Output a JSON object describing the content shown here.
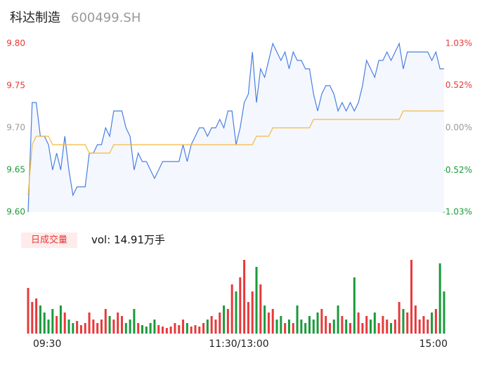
{
  "header": {
    "name": "科达制造",
    "code": "600499.SH"
  },
  "chart_data": {
    "type": "line",
    "ylim": [
      9.6,
      9.8
    ],
    "yticks": [
      {
        "value": 9.8,
        "label": "9.80"
      },
      {
        "value": 9.75,
        "label": "9.75"
      },
      {
        "value": 9.7,
        "label": "9.70"
      },
      {
        "value": 9.65,
        "label": "9.65"
      },
      {
        "value": 9.6,
        "label": "9.60"
      }
    ],
    "y2lim": [
      -1.03,
      1.03
    ],
    "y2ticks": [
      {
        "value": 1.03,
        "label": "1.03%"
      },
      {
        "value": 0.52,
        "label": "0.52%"
      },
      {
        "value": 0,
        "label": "0.00%"
      },
      {
        "value": -0.52,
        "label": "-0.52%"
      },
      {
        "value": -1.03,
        "label": "-1.03%"
      }
    ],
    "time_labels": [
      "09:30",
      "11:30/13:00",
      "15:00"
    ],
    "up_color": "#e8393a",
    "down_color": "#1a9a3a",
    "flat_color": "#999999",
    "series": [
      {
        "name": "price",
        "color": "#4a7fe0",
        "values": [
          9.6,
          9.73,
          9.73,
          9.69,
          9.69,
          9.68,
          9.65,
          9.67,
          9.65,
          9.69,
          9.65,
          9.62,
          9.63,
          9.63,
          9.63,
          9.67,
          9.67,
          9.68,
          9.68,
          9.7,
          9.69,
          9.72,
          9.72,
          9.72,
          9.7,
          9.69,
          9.65,
          9.67,
          9.66,
          9.66,
          9.65,
          9.64,
          9.65,
          9.66,
          9.66,
          9.66,
          9.66,
          9.66,
          9.68,
          9.66,
          9.68,
          9.69,
          9.7,
          9.7,
          9.69,
          9.7,
          9.7,
          9.71,
          9.7,
          9.72,
          9.72,
          9.68,
          9.7,
          9.73,
          9.74,
          9.79,
          9.73,
          9.77,
          9.76,
          9.78,
          9.8,
          9.79,
          9.78,
          9.79,
          9.77,
          9.79,
          9.78,
          9.78,
          9.77,
          9.77,
          9.74,
          9.72,
          9.74,
          9.75,
          9.75,
          9.74,
          9.72,
          9.73,
          9.72,
          9.73,
          9.72,
          9.73,
          9.75,
          9.78,
          9.77,
          9.76,
          9.78,
          9.78,
          9.79,
          9.78,
          9.79,
          9.8,
          9.77,
          9.79,
          9.79,
          9.79,
          9.79,
          9.79,
          9.79,
          9.78,
          9.79,
          9.77,
          9.77
        ]
      },
      {
        "name": "average",
        "color": "#f5b942",
        "values": [
          9.62,
          9.68,
          9.69,
          9.69,
          9.69,
          9.69,
          9.68,
          9.68,
          9.68,
          9.68,
          9.68,
          9.68,
          9.68,
          9.68,
          9.68,
          9.67,
          9.67,
          9.67,
          9.67,
          9.67,
          9.67,
          9.68,
          9.68,
          9.68,
          9.68,
          9.68,
          9.68,
          9.68,
          9.68,
          9.68,
          9.68,
          9.68,
          9.68,
          9.68,
          9.68,
          9.68,
          9.68,
          9.68,
          9.68,
          9.68,
          9.68,
          9.68,
          9.68,
          9.68,
          9.68,
          9.68,
          9.68,
          9.68,
          9.68,
          9.68,
          9.68,
          9.68,
          9.68,
          9.68,
          9.68,
          9.68,
          9.69,
          9.69,
          9.69,
          9.69,
          9.7,
          9.7,
          9.7,
          9.7,
          9.7,
          9.7,
          9.7,
          9.7,
          9.7,
          9.7,
          9.71,
          9.71,
          9.71,
          9.71,
          9.71,
          9.71,
          9.71,
          9.71,
          9.71,
          9.71,
          9.71,
          9.71,
          9.71,
          9.71,
          9.71,
          9.71,
          9.71,
          9.71,
          9.71,
          9.71,
          9.71,
          9.71,
          9.72,
          9.72,
          9.72,
          9.72,
          9.72,
          9.72,
          9.72,
          9.72,
          9.72,
          9.72,
          9.72
        ]
      }
    ],
    "volume": {
      "title": "日成交量",
      "label": "vol: 14.91万手",
      "ylim": [
        0,
        110
      ],
      "values": [
        65,
        45,
        50,
        40,
        30,
        20,
        35,
        25,
        40,
        30,
        20,
        15,
        18,
        12,
        15,
        30,
        20,
        15,
        20,
        35,
        25,
        20,
        30,
        25,
        15,
        20,
        35,
        15,
        12,
        10,
        15,
        20,
        12,
        10,
        8,
        10,
        15,
        12,
        20,
        15,
        10,
        12,
        10,
        15,
        20,
        25,
        20,
        30,
        40,
        35,
        70,
        60,
        80,
        105,
        45,
        60,
        95,
        70,
        40,
        30,
        35,
        20,
        25,
        15,
        20,
        15,
        40,
        20,
        15,
        25,
        20,
        30,
        35,
        25,
        15,
        20,
        40,
        25,
        20,
        15,
        80,
        30,
        15,
        25,
        20,
        30,
        15,
        25,
        20,
        15,
        20,
        45,
        35,
        30,
        105,
        40,
        20,
        25,
        20,
        30,
        35,
        100,
        60
      ]
    }
  }
}
